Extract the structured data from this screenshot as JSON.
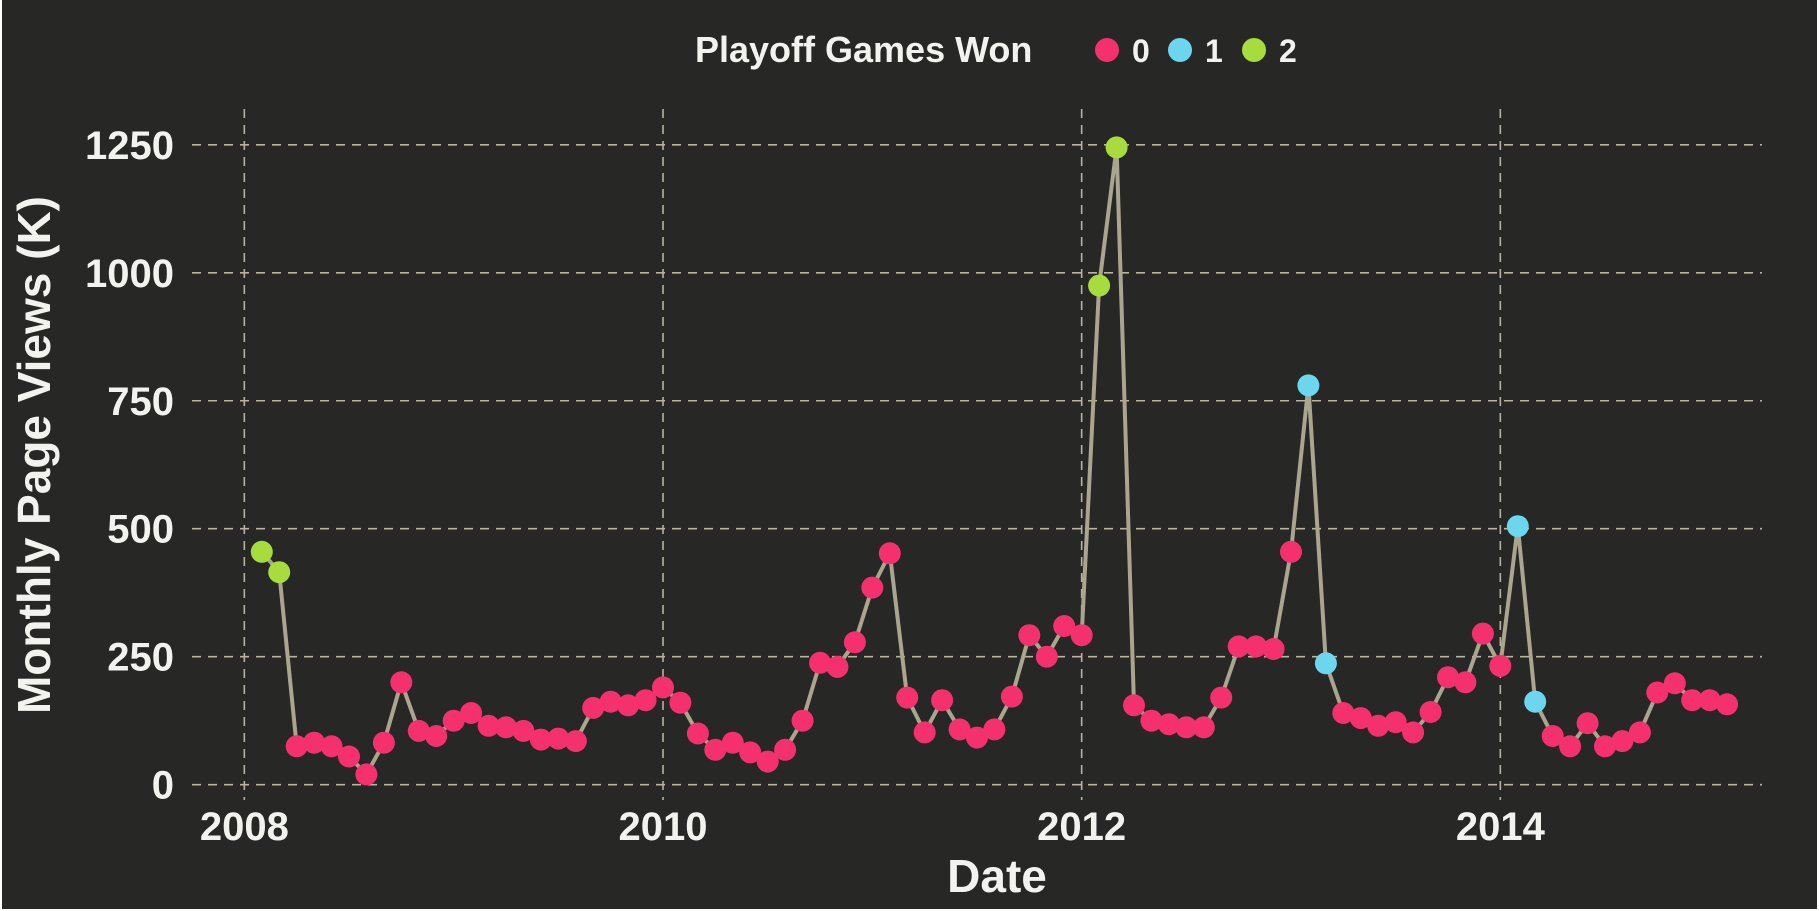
{
  "chart_data": {
    "type": "line",
    "title": "",
    "xlabel": "Date",
    "ylabel": "Monthly Page Views (K)",
    "x_range": [
      "2007-10-01",
      "2015-04-01"
    ],
    "ylim": [
      -30,
      1320
    ],
    "x_ticks": [
      {
        "label": "2008",
        "date": "2008-01-01"
      },
      {
        "label": "2010",
        "date": "2010-01-01"
      },
      {
        "label": "2012",
        "date": "2012-01-01"
      },
      {
        "label": "2014",
        "date": "2014-01-01"
      }
    ],
    "y_ticks": [
      0,
      250,
      500,
      750,
      1000,
      1250
    ],
    "grid": true,
    "legend": {
      "title": "Playoff Games Won",
      "placement": "top-center",
      "items": [
        {
          "label": "0",
          "color": "#f5306f"
        },
        {
          "label": "1",
          "color": "#6cd6ef"
        },
        {
          "label": "2",
          "color": "#a6dc3e"
        }
      ]
    },
    "line_color": "#aaa58f",
    "background": "#272725",
    "series": [
      {
        "x": [
          "2008-02",
          "2008-03",
          "2008-04",
          "2008-05",
          "2008-06",
          "2008-07",
          "2008-08",
          "2008-09",
          "2008-10",
          "2008-11",
          "2008-12",
          "2009-01",
          "2009-02",
          "2009-03",
          "2009-04",
          "2009-05",
          "2009-06",
          "2009-07",
          "2009-08",
          "2009-09",
          "2009-10",
          "2009-11",
          "2009-12",
          "2010-01",
          "2010-02",
          "2010-03",
          "2010-04",
          "2010-05",
          "2010-06",
          "2010-07",
          "2010-08",
          "2010-09",
          "2010-10",
          "2010-11",
          "2010-12",
          "2011-01",
          "2011-02",
          "2011-03",
          "2011-04",
          "2011-05",
          "2011-06",
          "2011-07",
          "2011-08",
          "2011-09",
          "2011-10",
          "2011-11",
          "2011-12",
          "2012-01",
          "2012-02",
          "2012-03",
          "2012-04",
          "2012-05",
          "2012-06",
          "2012-07",
          "2012-08",
          "2012-09",
          "2012-10",
          "2012-11",
          "2012-12",
          "2013-01",
          "2013-02",
          "2013-03",
          "2013-04",
          "2013-05",
          "2013-06",
          "2013-07",
          "2013-08",
          "2013-09",
          "2013-10",
          "2013-11",
          "2013-12",
          "2014-01",
          "2014-02",
          "2014-03",
          "2014-04",
          "2014-05",
          "2014-06",
          "2014-07",
          "2014-08",
          "2014-09",
          "2014-10",
          "2014-11",
          "2014-12",
          "2015-01",
          "2015-02"
        ],
        "y": [
          455,
          415,
          75,
          82,
          75,
          55,
          20,
          82,
          200,
          105,
          95,
          125,
          140,
          115,
          112,
          105,
          88,
          90,
          85,
          150,
          162,
          155,
          165,
          190,
          160,
          100,
          68,
          82,
          63,
          45,
          68,
          125,
          238,
          230,
          278,
          385,
          452,
          170,
          102,
          165,
          108,
          92,
          108,
          172,
          292,
          250,
          310,
          292,
          975,
          1245,
          155,
          125,
          118,
          112,
          112,
          170,
          270,
          270,
          265,
          455,
          780,
          237,
          140,
          130,
          115,
          122,
          102,
          142,
          210,
          200,
          295,
          232,
          505,
          162,
          95,
          75,
          120,
          75,
          85,
          102,
          180,
          198,
          165,
          165,
          157
        ],
        "playoff_games_won": [
          2,
          2,
          0,
          0,
          0,
          0,
          0,
          0,
          0,
          0,
          0,
          0,
          0,
          0,
          0,
          0,
          0,
          0,
          0,
          0,
          0,
          0,
          0,
          0,
          0,
          0,
          0,
          0,
          0,
          0,
          0,
          0,
          0,
          0,
          0,
          0,
          0,
          0,
          0,
          0,
          0,
          0,
          0,
          0,
          0,
          0,
          0,
          0,
          2,
          2,
          0,
          0,
          0,
          0,
          0,
          0,
          0,
          0,
          0,
          0,
          1,
          1,
          0,
          0,
          0,
          0,
          0,
          0,
          0,
          0,
          0,
          0,
          1,
          1,
          0,
          0,
          0,
          0,
          0,
          0,
          0,
          0,
          0,
          0,
          0
        ]
      }
    ]
  }
}
